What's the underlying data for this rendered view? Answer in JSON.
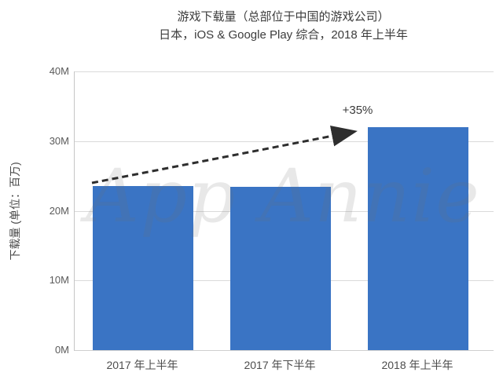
{
  "page": {
    "background_color": "#FFFFFF",
    "text_color": "#3C3C3C"
  },
  "chart_data": {
    "type": "bar",
    "title": "游戏下载量（总部位于中国的游戏公司）",
    "subtitle": "日本，iOS & Google Play 综合，2018 年上半年",
    "ylabel": "下载量 (单位：百万)",
    "xlabel": "",
    "categories": [
      "2017 年上半年",
      "2017 年下半年",
      "2018 年上半年"
    ],
    "values": [
      23.5,
      23.4,
      32
    ],
    "value_unit": "M",
    "ylim": [
      0,
      40
    ],
    "ytick_values": [
      0,
      10,
      20,
      30,
      40
    ],
    "ytick_labels": [
      "0M",
      "10M",
      "20M",
      "30M",
      "40M"
    ],
    "grid": "horizontal",
    "legend": "none",
    "bar_color": "#3A74C4",
    "annotation": {
      "label": "+35%",
      "style": "dashed-arrow",
      "from_category": "2017 年上半年",
      "to_category": "2018 年上半年",
      "arrow_color": "#2E2E2E"
    },
    "watermark": "App Annie"
  }
}
